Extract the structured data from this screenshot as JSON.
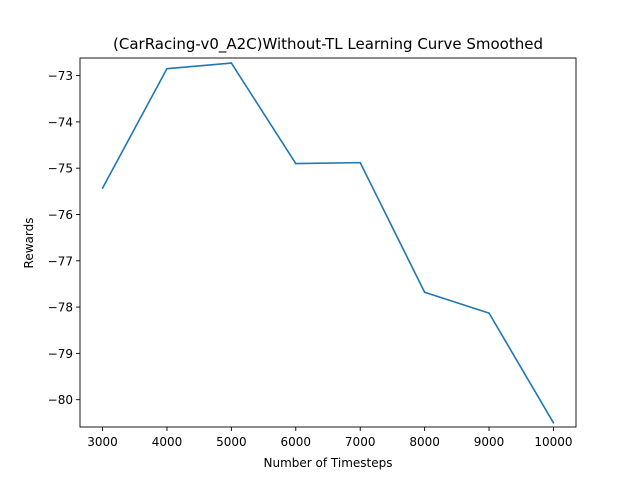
{
  "chart_data": {
    "type": "line",
    "title": "(CarRacing-v0_A2C)Without-TL Learning Curve Smoothed",
    "xlabel": "Number of Timesteps",
    "ylabel": "Rewards",
    "x": [
      3000,
      4000,
      5000,
      6000,
      7000,
      8000,
      9000,
      10000
    ],
    "series": [
      {
        "values": [
          -75.43,
          -72.85,
          -72.73,
          -74.9,
          -74.88,
          -77.68,
          -78.13,
          -80.5
        ],
        "color": "#1f77b4"
      }
    ],
    "x_ticks": [
      3000,
      4000,
      5000,
      6000,
      7000,
      8000,
      9000,
      10000
    ],
    "x_tick_labels": [
      "3000",
      "4000",
      "5000",
      "6000",
      "7000",
      "8000",
      "9000",
      "10000"
    ],
    "y_ticks": [
      -73,
      -74,
      -75,
      -76,
      -77,
      -78,
      -79,
      -80
    ],
    "y_tick_labels": [
      "−73",
      "−74",
      "−75",
      "−76",
      "−77",
      "−78",
      "−79",
      "−80"
    ],
    "xlim": [
      2650,
      10350
    ],
    "ylim": [
      -80.59,
      -72.62
    ],
    "grid": false,
    "legend": "none"
  }
}
